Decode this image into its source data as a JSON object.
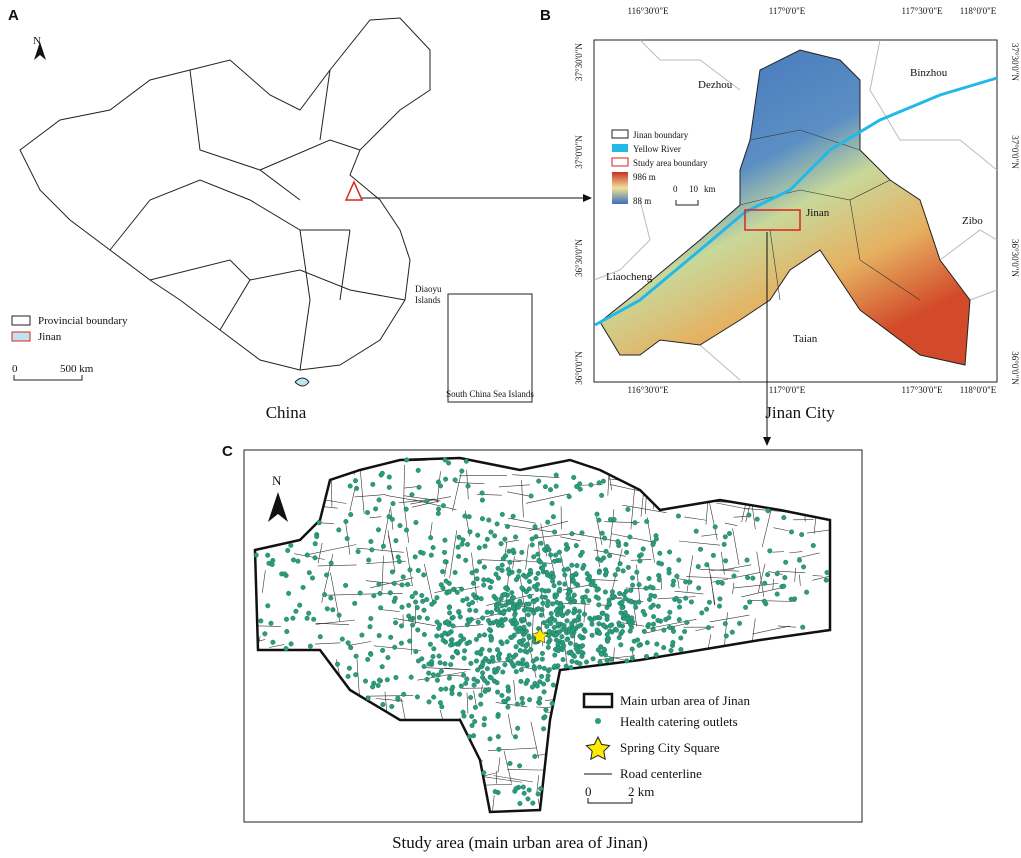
{
  "panel_labels": [
    "A",
    "B",
    "C"
  ],
  "panel_a": {
    "north": "N",
    "legend": [
      "Provincial boundary",
      "Jinan"
    ],
    "scale": [
      "0",
      "500 km"
    ],
    "inset_label": [
      "Diaoyu",
      "Islands"
    ],
    "inset_caption": "South China Sea Islands",
    "caption": "China"
  },
  "panel_b": {
    "lon_labels": [
      "116°30'0\"E",
      "117°0'0\"E",
      "117°30'0\"E",
      "118°0'0\"E"
    ],
    "lat_labels": [
      "37°30'0\"N",
      "37°0'0\"N",
      "36°30'0\"N",
      "36°0'0\"N"
    ],
    "places": [
      "Dezhou",
      "Binzhou",
      "Jinan",
      "Zibo",
      "Liaocheng",
      "Taian"
    ],
    "legend": [
      "Jinan boundary",
      "Yellow River",
      "Study area boundary"
    ],
    "elevation": [
      "986 m",
      "88 m"
    ],
    "scale": [
      "0",
      "10",
      "km"
    ],
    "caption": "Jinan City"
  },
  "panel_c": {
    "north": "N",
    "legend": [
      "Main urban area of Jinan",
      "Health catering outlets",
      "Spring City Square",
      "Road centerline"
    ],
    "scale": [
      "0",
      "2 km"
    ],
    "caption": "Study area (main urban area of Jinan)"
  }
}
